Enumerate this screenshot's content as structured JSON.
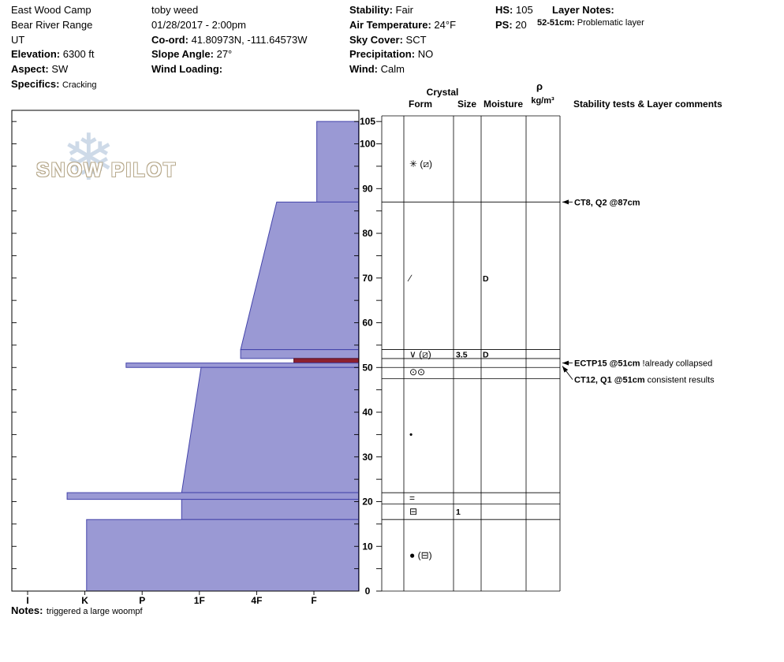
{
  "header": {
    "site": "East Wood Camp",
    "range": "Bear River Range",
    "state": "UT",
    "elevation": {
      "label": "Elevation:",
      "value": "6300 ft"
    },
    "aspect": {
      "label": "Aspect:",
      "value": "SW"
    },
    "specifics": {
      "label": "Specifics:",
      "value": "Cracking"
    },
    "observer": "toby weed",
    "datetime": "01/28/2017 - 2:00pm",
    "coord": {
      "label": "Co-ord:",
      "value": "41.80973N, -111.64573W"
    },
    "slope_angle": {
      "label": "Slope Angle:",
      "value": "27°"
    },
    "wind_loading": {
      "label": "Wind Loading:",
      "value": ""
    },
    "stability": {
      "label": "Stability:",
      "value": "Fair"
    },
    "air_temp": {
      "label": "Air Temperature:",
      "value": "24°F"
    },
    "sky_cover": {
      "label": "Sky Cover:",
      "value": "SCT"
    },
    "precipitation": {
      "label": "Precipitation:",
      "value": "NO"
    },
    "wind": {
      "label": "Wind:",
      "value": "Calm"
    },
    "hs": {
      "label": "HS:",
      "value": "105"
    },
    "ps": {
      "label": "PS:",
      "value": "20"
    },
    "layer_notes": {
      "label": "Layer Notes:",
      "entry_label": "52-51cm:",
      "entry_value": "Problematic layer"
    }
  },
  "watermark": {
    "text": "SNOW PILOT",
    "snowflake": "❄"
  },
  "footer_notes": {
    "label": "Notes:",
    "value": "triggered a large woompf"
  },
  "chart_data": {
    "type": "snow-profile",
    "title": "Snow pit hardness profile, East Wood Camp 01/28/2017",
    "columns": {
      "crystal": "Crystal",
      "form": "Form",
      "size": "Size",
      "moisture": "Moisture",
      "density_rho": "ρ",
      "density_units": "kg/m³",
      "comments": "Stability tests & Layer comments"
    },
    "depth_axis": {
      "unit": "cm",
      "max": 105,
      "minor_tick_step": 5,
      "labeled_ticks": [
        105,
        100,
        90,
        80,
        70,
        60,
        50,
        40,
        30,
        20,
        10,
        0
      ]
    },
    "hardness_axis": {
      "labels": [
        "I",
        "K",
        "P",
        "1F",
        "4F",
        "F"
      ],
      "scale": {
        "I": 0,
        "K": 1,
        "P": 2,
        "1F": 3,
        "4F": 4,
        "F": 5
      }
    },
    "hs_cm": 105,
    "layers": [
      {
        "top_cm": 105,
        "bottom_cm": 87,
        "hardness_top": 5.05,
        "hardness_bottom": 5.05
      },
      {
        "top_cm": 87,
        "bottom_cm": 54,
        "hardness_top": 4.35,
        "hardness_bottom": 3.72
      },
      {
        "top_cm": 54,
        "bottom_cm": 52,
        "hardness_top": 3.72,
        "hardness_bottom": 3.72
      },
      {
        "top_cm": 52,
        "bottom_cm": 51,
        "hardness_top": 4.65,
        "hardness_bottom": 4.65,
        "flag": "problematic",
        "color": "#8b2030"
      },
      {
        "top_cm": 51,
        "bottom_cm": 50,
        "hardness_top": 1.72,
        "hardness_bottom": 1.72
      },
      {
        "top_cm": 50,
        "bottom_cm": 22,
        "hardness_top": 3.03,
        "hardness_bottom": 2.69
      },
      {
        "top_cm": 22,
        "bottom_cm": 20.5,
        "hardness_top": 0.69,
        "hardness_bottom": 0.69
      },
      {
        "top_cm": 20.5,
        "bottom_cm": 16,
        "hardness_top": 2.69,
        "hardness_bottom": 2.69
      },
      {
        "top_cm": 16,
        "bottom_cm": 0,
        "hardness_top": 1.03,
        "hardness_bottom": 1.03
      }
    ],
    "layer_boundaries_cm": [
      105,
      87,
      54,
      52,
      50,
      47.5,
      22,
      19.5,
      16,
      0
    ],
    "grains": [
      {
        "cm": 95.5,
        "form": "✳ (⧄)",
        "size": "",
        "moisture": ""
      },
      {
        "cm": 70,
        "form": "∕",
        "size": "",
        "moisture": "D"
      },
      {
        "cm": 53,
        "form": "∨ (⧄)",
        "size": "3.5",
        "moisture": "D"
      },
      {
        "cm": 49,
        "form": "⊙⊙",
        "size": "",
        "moisture": ""
      },
      {
        "cm": 35,
        "form": "•",
        "size": "",
        "moisture": ""
      },
      {
        "cm": 20.8,
        "form": "=",
        "size": "",
        "moisture": ""
      },
      {
        "cm": 17.8,
        "form": "⊟",
        "size": "1",
        "moisture": ""
      },
      {
        "cm": 8,
        "form": "● (⊟)",
        "size": "",
        "moisture": ""
      }
    ],
    "tests": [
      {
        "cm": 87,
        "target_cm": 87,
        "label": "CT8, Q2 @87cm",
        "comment": ""
      },
      {
        "cm": 51,
        "target_cm": 51,
        "label": "ECTP15 @51cm",
        "comment": "!already collapsed"
      },
      {
        "cm": 47.3,
        "target_cm": 50.3,
        "label": "CT12, Q1 @51cm",
        "comment": "consistent results"
      }
    ],
    "colors": {
      "layer_fill": "#9a99d4",
      "layer_stroke": "#4444aa",
      "problem_fill": "#8b2030"
    }
  }
}
